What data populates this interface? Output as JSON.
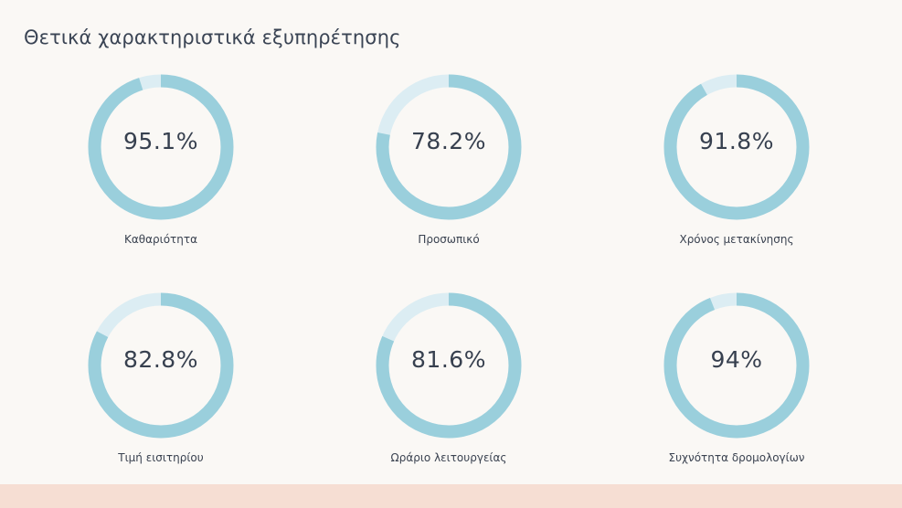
{
  "header": {
    "title": "Θετικά χαρακτηριστικά εξυπηρέτησης"
  },
  "colors": {
    "filled": "#9acfdc",
    "remainder": "#dcedf3",
    "background": "#faf8f5",
    "footer": "#f6ded3"
  },
  "chart_data": {
    "type": "pie",
    "title": "Θετικά χαρακτηριστικά εξυπηρέτησης",
    "style": "donut-gauges",
    "items": [
      {
        "label": "Καθαριότητα",
        "value": 95.1,
        "display": "95.1%"
      },
      {
        "label": "Προσωπικό",
        "value": 78.2,
        "display": "78.2%"
      },
      {
        "label": "Χρόνος μετακίνησης",
        "value": 91.8,
        "display": "91.8%"
      },
      {
        "label": "Τιμή εισιτηρίου",
        "value": 82.8,
        "display": "82.8%"
      },
      {
        "label": "Ωράριο λειτουργείας",
        "value": 81.6,
        "display": "81.6%"
      },
      {
        "label": "Συχνότητα δρομολογίων",
        "value": 94,
        "display": "94%"
      }
    ]
  }
}
